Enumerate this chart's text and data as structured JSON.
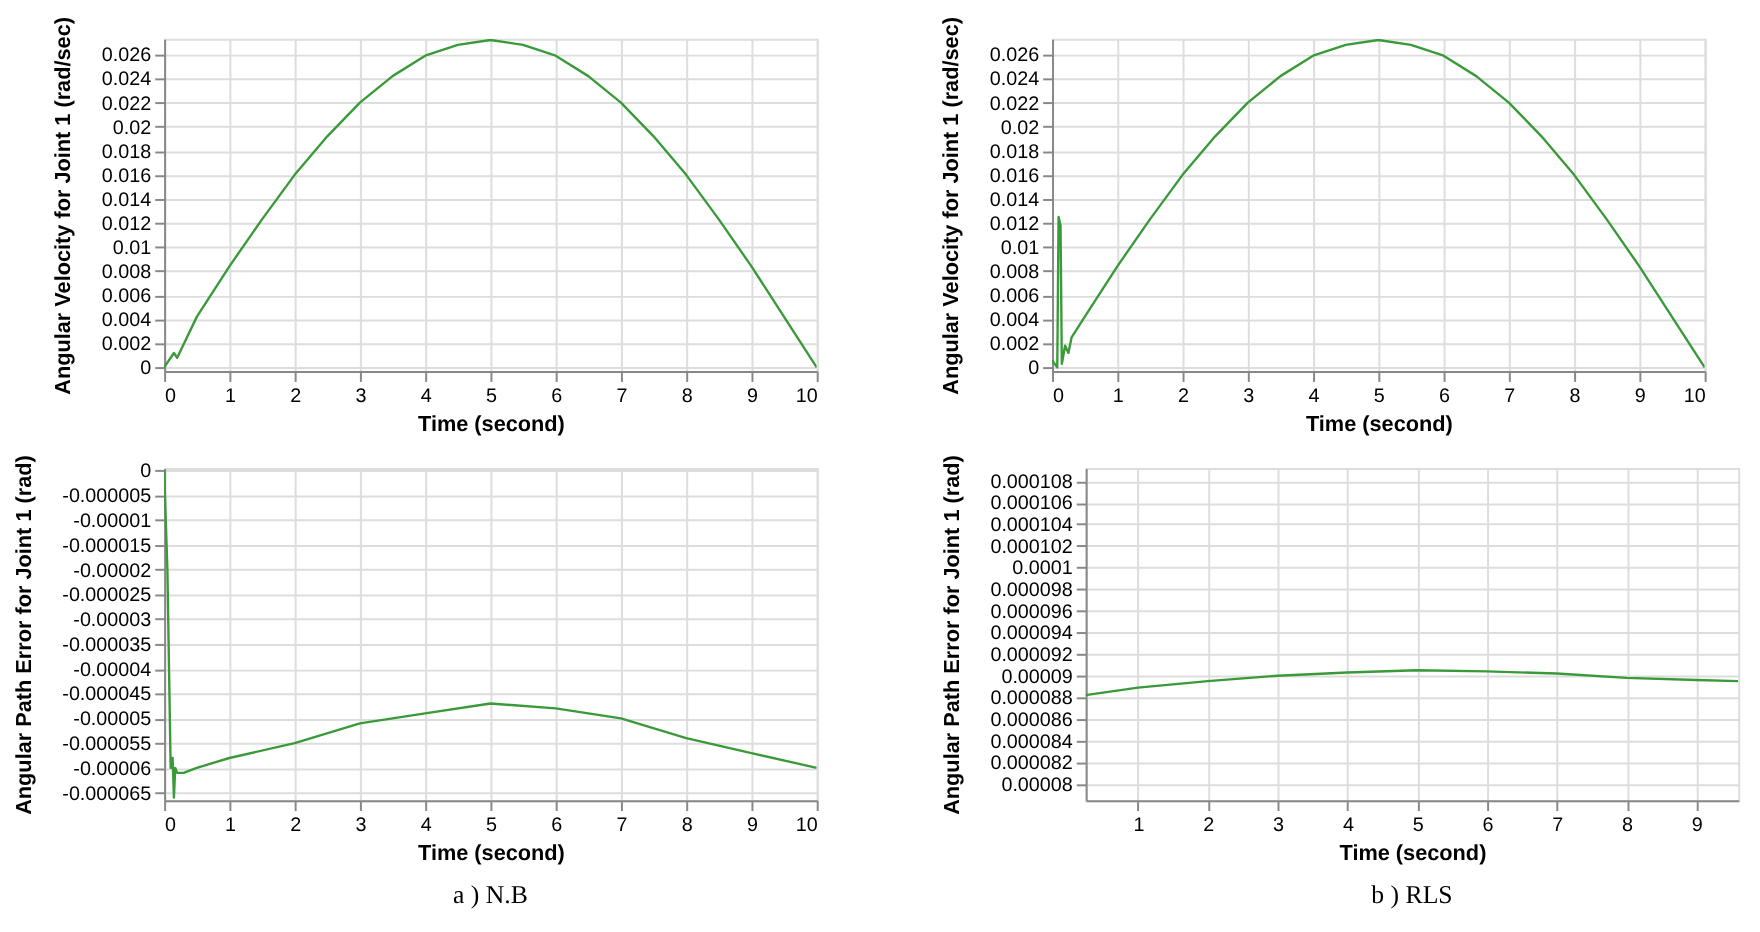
{
  "chart_data": [
    {
      "type": "line",
      "xlabel": "Time (second)",
      "ylabel": "Angular Velocity for Joint 1 (rad/sec)",
      "grid": true,
      "xlim": [
        0,
        10
      ],
      "xticks": [
        0,
        1,
        2,
        3,
        4,
        5,
        6,
        7,
        8,
        9,
        10
      ],
      "ylim": [
        -0.0003,
        0.0273
      ],
      "yticks": [
        0,
        0.002,
        0.004,
        0.006,
        0.008,
        0.01,
        0.012,
        0.014,
        0.016,
        0.018,
        0.02,
        0.022,
        0.024,
        0.026
      ],
      "x": [
        0,
        0.15,
        0.2,
        0.5,
        1,
        1.5,
        2,
        2.5,
        3,
        3.5,
        4,
        4.5,
        5,
        5.5,
        6,
        6.5,
        7,
        7.5,
        8,
        8.5,
        9,
        9.5,
        10
      ],
      "series": [
        {
          "color": "#3a9a3a",
          "values": [
            0,
            0.0012,
            0.0008,
            0.0042,
            0.0084,
            0.0123,
            0.016,
            0.0192,
            0.022,
            0.0242,
            0.0259,
            0.0268,
            0.0272,
            0.0268,
            0.0259,
            0.0242,
            0.022,
            0.0192,
            0.016,
            0.0123,
            0.0084,
            0.0042,
            0
          ]
        }
      ]
    },
    {
      "type": "line",
      "xlabel": "Time (second)",
      "ylabel": "Angular Velocity for Joint 1 (rad/sec)",
      "grid": true,
      "xlim": [
        0,
        10
      ],
      "xticks": [
        0,
        1,
        2,
        3,
        4,
        5,
        6,
        7,
        8,
        9,
        10
      ],
      "ylim": [
        -0.0003,
        0.0273
      ],
      "yticks": [
        0,
        0.002,
        0.004,
        0.006,
        0.008,
        0.01,
        0.012,
        0.014,
        0.016,
        0.018,
        0.02,
        0.022,
        0.024,
        0.026
      ],
      "x": [
        0,
        0.08,
        0.1,
        0.13,
        0.15,
        0.2,
        0.25,
        0.3,
        0.5,
        1,
        1.5,
        2,
        2.5,
        3,
        3.5,
        4,
        4.5,
        5,
        5.5,
        6,
        6.5,
        7,
        7.5,
        8,
        8.5,
        9,
        9.5,
        10
      ],
      "series": [
        {
          "color": "#3a9a3a",
          "values": [
            0.0006,
            0,
            0.0125,
            0.0118,
            0.0003,
            0.0018,
            0.0012,
            0.0025,
            0.0042,
            0.0084,
            0.0123,
            0.016,
            0.0192,
            0.022,
            0.0242,
            0.0259,
            0.0268,
            0.0272,
            0.0268,
            0.0259,
            0.0242,
            0.022,
            0.0192,
            0.016,
            0.0123,
            0.0084,
            0.0042,
            0
          ]
        }
      ]
    },
    {
      "type": "line",
      "xlabel": "Time (second)",
      "ylabel": "Angular Path Error for Joint 1 (rad)",
      "grid": true,
      "annotations": [
        "a ) N.B"
      ],
      "xlim": [
        0,
        10
      ],
      "xticks": [
        0,
        1,
        2,
        3,
        4,
        5,
        6,
        7,
        8,
        9,
        10
      ],
      "ylim": [
        -6.65e-05,
        5e-07
      ],
      "yticks": [
        0,
        {
          "value": -5e-06,
          "label": "-0.000005"
        },
        {
          "value": -1e-05,
          "label": "-0.00001"
        },
        {
          "value": -1.5e-05,
          "label": "-0.000015"
        },
        {
          "value": -2e-05,
          "label": "-0.00002"
        },
        {
          "value": -2.5e-05,
          "label": "-0.000025"
        },
        {
          "value": -3e-05,
          "label": "-0.00003"
        },
        {
          "value": -3.5e-05,
          "label": "-0.000035"
        },
        {
          "value": -4e-05,
          "label": "-0.00004"
        },
        {
          "value": -4.5e-05,
          "label": "-0.000045"
        },
        {
          "value": -5e-05,
          "label": "-0.00005"
        },
        {
          "value": -5.5e-05,
          "label": "-0.000055"
        },
        {
          "value": -6e-05,
          "label": "-0.00006"
        },
        {
          "value": -6.5e-05,
          "label": "-0.000065"
        }
      ],
      "x": [
        0,
        0.05,
        0.1,
        0.13,
        0.15,
        0.17,
        0.2,
        0.3,
        0.5,
        1,
        2,
        3,
        4,
        5,
        6,
        7,
        8,
        9,
        10
      ],
      "series": [
        {
          "color": "#3a9a3a",
          "values": [
            0,
            -2e-05,
            -6e-05,
            -5.8e-05,
            -6.6e-05,
            -6e-05,
            -6.1e-05,
            -6.1e-05,
            -6e-05,
            -5.8e-05,
            -5.5e-05,
            -5.1e-05,
            -4.9e-05,
            -4.7e-05,
            -4.8e-05,
            -5e-05,
            -5.4e-05,
            -5.7e-05,
            -6e-05
          ]
        }
      ]
    },
    {
      "type": "line",
      "xlabel": "Time (second)",
      "ylabel": "Angular Path Error for Joint 1 (rad)",
      "grid": true,
      "annotations": [
        "b ) RLS"
      ],
      "xlim": [
        0.25,
        9.6
      ],
      "xticks": [
        1,
        2,
        3,
        4,
        5,
        6,
        7,
        8,
        9
      ],
      "ylim": [
        7.85e-05,
        0.0001092
      ],
      "yticks": [
        {
          "value": 8e-05,
          "label": "0.00008"
        },
        {
          "value": 8.2e-05,
          "label": "0.000082"
        },
        {
          "value": 8.4e-05,
          "label": "0.000084"
        },
        {
          "value": 8.6e-05,
          "label": "0.000086"
        },
        {
          "value": 8.8e-05,
          "label": "0.000088"
        },
        {
          "value": 9e-05,
          "label": "0.00009"
        },
        {
          "value": 9.2e-05,
          "label": "0.000092"
        },
        {
          "value": 9.4e-05,
          "label": "0.000094"
        },
        {
          "value": 9.6e-05,
          "label": "0.000096"
        },
        {
          "value": 9.8e-05,
          "label": "0.000098"
        },
        {
          "value": 0.0001,
          "label": "0.0001"
        },
        {
          "value": 0.000102,
          "label": "0.000102"
        },
        {
          "value": 0.000104,
          "label": "0.000104"
        },
        {
          "value": 0.000106,
          "label": "0.000106"
        },
        {
          "value": 0.000108,
          "label": "0.000108"
        }
      ],
      "x": [
        0.25,
        1,
        2,
        3,
        4,
        5,
        6,
        7,
        8,
        9,
        9.6
      ],
      "series": [
        {
          "color": "#3a9a3a",
          "values": [
            8.82e-05,
            8.89e-05,
            8.95e-05,
            9e-05,
            9.03e-05,
            9.05e-05,
            9.04e-05,
            9.02e-05,
            8.98e-05,
            8.96e-05,
            8.95e-05
          ]
        }
      ]
    }
  ]
}
